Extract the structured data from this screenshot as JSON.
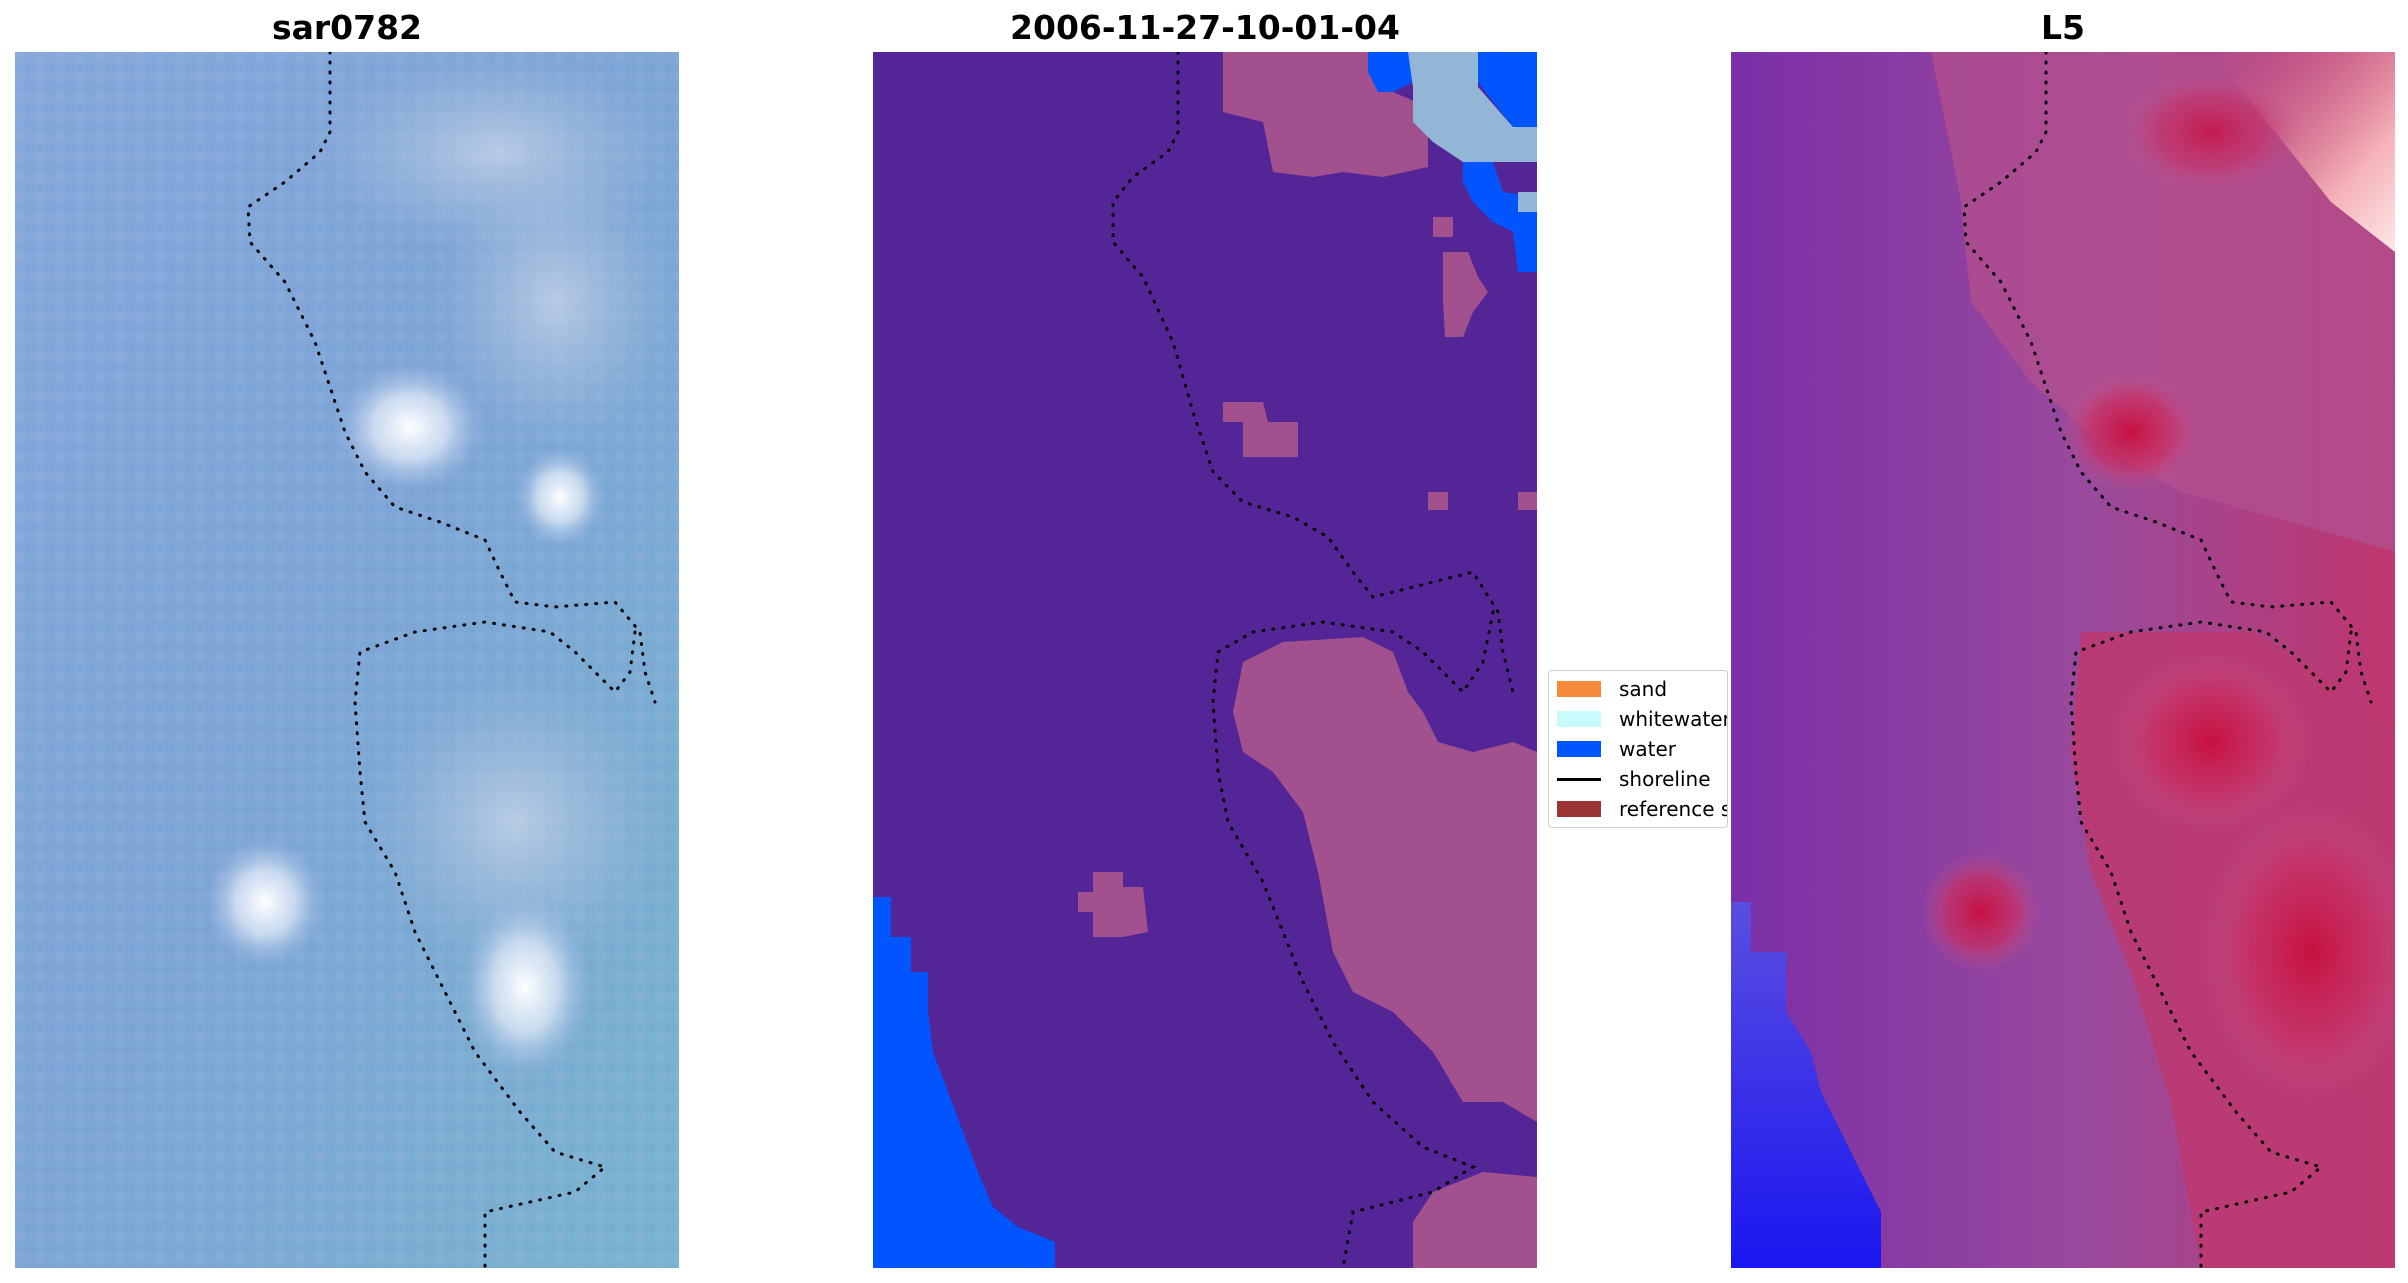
{
  "panels": [
    {
      "title": "sar0782"
    },
    {
      "title": "2006-11-27-10-01-04"
    },
    {
      "title": "L5"
    }
  ],
  "legend": {
    "items": [
      {
        "label": "sand",
        "color": "#f58a3c",
        "kind": "patch"
      },
      {
        "label": "whitewater",
        "color": "#c8fbfb",
        "kind": "patch"
      },
      {
        "label": "water",
        "color": "#0055ff",
        "kind": "patch"
      },
      {
        "label": "shoreline",
        "color": "#000000",
        "kind": "line"
      },
      {
        "label": "reference s",
        "color": "#9b3434",
        "kind": "patch"
      }
    ]
  },
  "colors": {
    "classified_background": "#532597",
    "classified_sand": "#a3508e",
    "water": "#0055ff",
    "sar_base": "#7da4d8",
    "l5_base": "#8a3fa6",
    "l5_high": "#c8184f"
  }
}
